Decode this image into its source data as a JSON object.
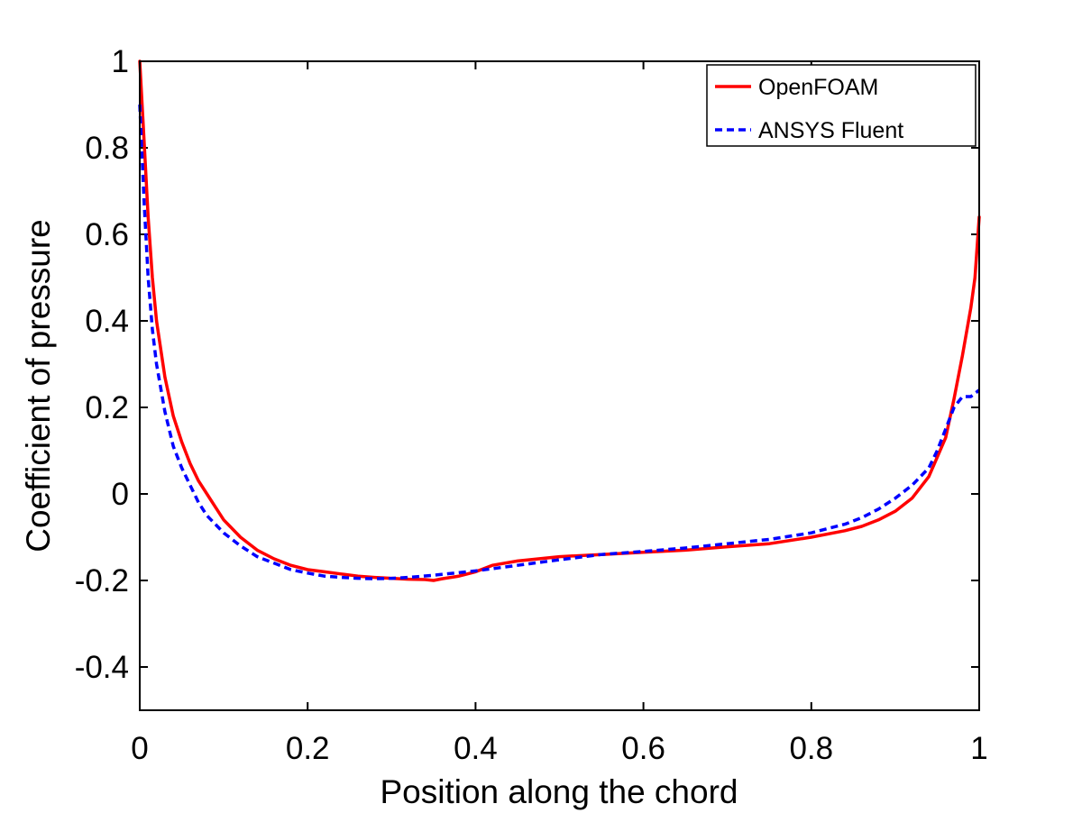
{
  "chart_data": {
    "type": "line",
    "xlabel": "Position along the chord",
    "ylabel": "Coefficient of pressure",
    "xlim": [
      0,
      1
    ],
    "ylim": [
      -0.5,
      1
    ],
    "x_ticks": [
      0,
      0.2,
      0.4,
      0.6,
      0.8,
      1
    ],
    "x_tick_labels": [
      "0",
      "0.2",
      "0.4",
      "0.6",
      "0.8",
      "1"
    ],
    "y_ticks": [
      -0.4,
      -0.2,
      0,
      0.2,
      0.4,
      0.6,
      0.8,
      1
    ],
    "y_tick_labels": [
      "-0.4",
      "-0.2",
      "0",
      "0.2",
      "0.4",
      "0.6",
      "0.8",
      "1"
    ],
    "grid": false,
    "legend_position": "top-right",
    "series": [
      {
        "name": "OpenFOAM",
        "color": "#ff0000",
        "style": "solid",
        "x": [
          0,
          0.005,
          0.01,
          0.015,
          0.02,
          0.03,
          0.04,
          0.05,
          0.06,
          0.07,
          0.08,
          0.09,
          0.1,
          0.12,
          0.14,
          0.16,
          0.18,
          0.2,
          0.22,
          0.24,
          0.26,
          0.28,
          0.3,
          0.32,
          0.34,
          0.35,
          0.36,
          0.38,
          0.4,
          0.42,
          0.45,
          0.5,
          0.55,
          0.6,
          0.65,
          0.7,
          0.75,
          0.8,
          0.84,
          0.86,
          0.88,
          0.9,
          0.92,
          0.94,
          0.96,
          0.97,
          0.98,
          0.99,
          0.995,
          1
        ],
        "y": [
          1.0,
          0.82,
          0.64,
          0.5,
          0.4,
          0.27,
          0.18,
          0.12,
          0.07,
          0.03,
          0.0,
          -0.03,
          -0.06,
          -0.1,
          -0.13,
          -0.15,
          -0.165,
          -0.175,
          -0.18,
          -0.185,
          -0.19,
          -0.193,
          -0.195,
          -0.197,
          -0.198,
          -0.2,
          -0.196,
          -0.19,
          -0.18,
          -0.165,
          -0.155,
          -0.145,
          -0.14,
          -0.135,
          -0.13,
          -0.122,
          -0.115,
          -0.1,
          -0.085,
          -0.075,
          -0.06,
          -0.04,
          -0.01,
          0.04,
          0.13,
          0.22,
          0.32,
          0.43,
          0.5,
          0.64
        ]
      },
      {
        "name": "ANSYS Fluent",
        "color": "#0000ff",
        "style": "dashed",
        "x": [
          0,
          0.005,
          0.01,
          0.015,
          0.02,
          0.03,
          0.04,
          0.05,
          0.06,
          0.07,
          0.08,
          0.1,
          0.12,
          0.14,
          0.16,
          0.18,
          0.2,
          0.22,
          0.24,
          0.26,
          0.28,
          0.3,
          0.32,
          0.35,
          0.4,
          0.45,
          0.5,
          0.55,
          0.6,
          0.65,
          0.7,
          0.75,
          0.8,
          0.84,
          0.86,
          0.88,
          0.9,
          0.92,
          0.94,
          0.95,
          0.96,
          0.97,
          0.98,
          0.99,
          1
        ],
        "y": [
          0.9,
          0.68,
          0.5,
          0.38,
          0.3,
          0.19,
          0.11,
          0.06,
          0.02,
          -0.02,
          -0.05,
          -0.09,
          -0.12,
          -0.145,
          -0.16,
          -0.175,
          -0.183,
          -0.19,
          -0.193,
          -0.195,
          -0.196,
          -0.195,
          -0.193,
          -0.188,
          -0.178,
          -0.165,
          -0.152,
          -0.14,
          -0.133,
          -0.125,
          -0.115,
          -0.105,
          -0.09,
          -0.07,
          -0.055,
          -0.035,
          -0.01,
          0.02,
          0.06,
          0.1,
          0.15,
          0.2,
          0.225,
          0.225,
          0.24
        ]
      }
    ]
  }
}
